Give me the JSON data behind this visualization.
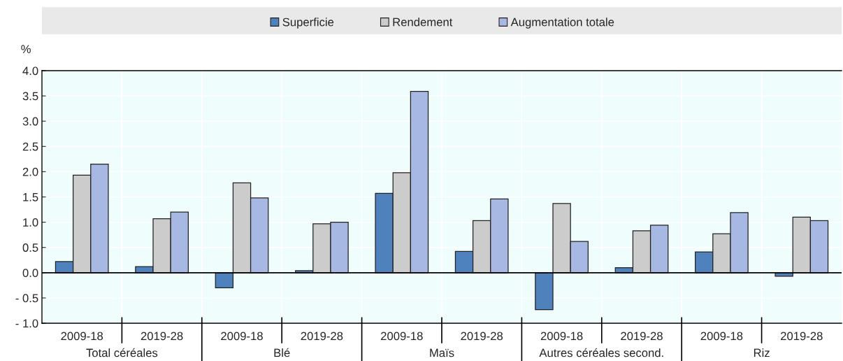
{
  "chart_data": {
    "type": "bar",
    "ylabel": "%",
    "categories": [
      "2009-18",
      "2019-28",
      "2009-18",
      "2019-28",
      "2009-18",
      "2019-28",
      "2009-18",
      "2019-28",
      "2009-18",
      "2019-28"
    ],
    "annotations": [
      "Total céréales",
      "Blé",
      "Maïs",
      "Autres céréales second.",
      "Riz"
    ],
    "series": [
      {
        "name": "Superficie",
        "color": "#4f81bd",
        "values": [
          0.22,
          0.12,
          -0.3,
          0.04,
          1.57,
          0.42,
          -0.73,
          0.1,
          0.41,
          -0.07
        ]
      },
      {
        "name": "Rendement",
        "color": "#cccccc",
        "values": [
          1.93,
          1.07,
          1.78,
          0.97,
          1.98,
          1.03,
          1.37,
          0.83,
          0.77,
          1.1
        ]
      },
      {
        "name": "Augmentation totale",
        "color": "#a7b9e3",
        "values": [
          2.15,
          1.2,
          1.48,
          1.0,
          3.59,
          1.46,
          0.62,
          0.94,
          1.19,
          1.03
        ]
      }
    ],
    "ylim": [
      -1.0,
      4.0
    ],
    "yticks": [
      {
        "value": -1.0,
        "label": "- 1.0"
      },
      {
        "value": -0.5,
        "label": "- 0.5"
      },
      {
        "value": 0.0,
        "label": "0.0"
      },
      {
        "value": 0.5,
        "label": "0.5"
      },
      {
        "value": 1.0,
        "label": "1.0"
      },
      {
        "value": 1.5,
        "label": "1.5"
      },
      {
        "value": 2.0,
        "label": "2.0"
      },
      {
        "value": 2.5,
        "label": "2.5"
      },
      {
        "value": 3.0,
        "label": "3.0"
      },
      {
        "value": 3.5,
        "label": "3.5"
      },
      {
        "value": 4.0,
        "label": "4.0"
      }
    ],
    "grid": true,
    "legend": "top"
  }
}
